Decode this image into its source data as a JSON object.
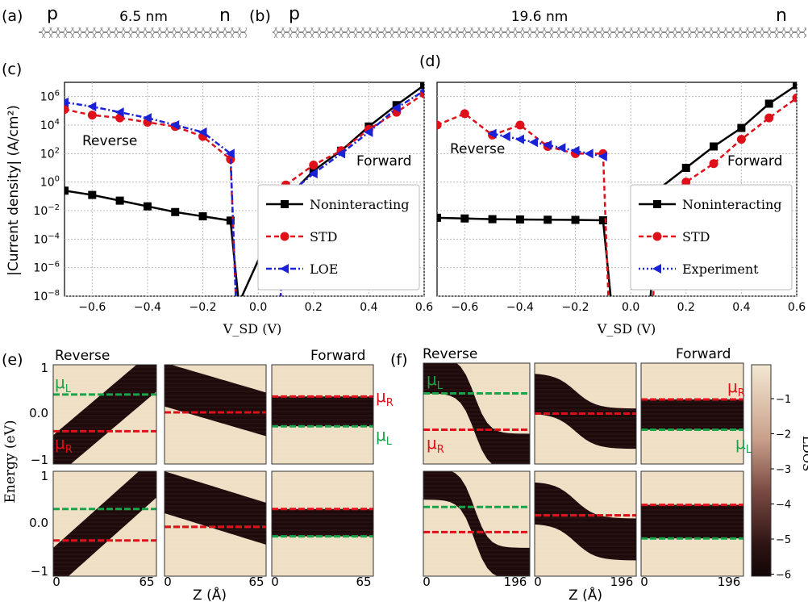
{
  "panel_labels": [
    "(a)",
    "(b)",
    "(c)",
    "(d)",
    "(e)",
    "(f)"
  ],
  "molecule_a": {
    "left_label": "p",
    "length": "6.5 nm",
    "right_label": "n"
  },
  "molecule_b": {
    "left_label": "p",
    "length": "19.6 nm",
    "right_label": "n"
  },
  "panel_c": {
    "ylabel": "|Current density| (A/cm²)",
    "xlabel": "V_SD (V)",
    "annotations": [
      "Reverse",
      "Forward"
    ]
  },
  "panel_d": {
    "xlabel": "V_SD (V)",
    "annotations": [
      "Reverse",
      "Forward"
    ]
  },
  "panel_e": {
    "ylabel": "Energy (eV)",
    "xlabel": "Z (Å)",
    "column_titles": [
      "Reverse",
      "Forward"
    ],
    "mu_left": "μ_L",
    "mu_right": "μ_R",
    "x_ticks": [
      "0",
      "65"
    ],
    "y_ticks": [
      "1",
      "0.0",
      "-1"
    ]
  },
  "panel_f": {
    "xlabel": "Z (Å)",
    "column_titles": [
      "Reverse",
      "Forward"
    ],
    "mu_left": "μ_L",
    "mu_right": "μ_R",
    "x_ticks": [
      "0",
      "196"
    ],
    "colorbar_label": "LDOS",
    "colorbar_ticks": [
      "-1",
      "-2",
      "-3",
      "-4",
      "-5",
      "-6"
    ]
  },
  "colors": {
    "noninteracting": "#000000",
    "std": "#e0101a",
    "loe": "#1a22d8",
    "mu_green": "#1aa34a",
    "mu_red": "#e0101a",
    "dark": "#1e0a0a",
    "light": "#efdfc5"
  },
  "chart_data": [
    {
      "type": "line",
      "panel": "c",
      "log_y": true,
      "xlim": [
        -0.7,
        0.6
      ],
      "ylim": [
        "1e-8",
        "1e7"
      ],
      "xticks": [
        "-0.6",
        "-0.4",
        "-0.2",
        "0.0",
        "0.2",
        "0.4",
        "0.6"
      ],
      "yticks": [
        "10-8",
        "10-6",
        "10-4",
        "10-2",
        "100",
        "102",
        "104",
        "106"
      ],
      "legend": "lower-right",
      "grid": true,
      "series": [
        {
          "name": "Noninteracting",
          "marker": "square",
          "style": "solid",
          "x": [
            -0.7,
            -0.6,
            -0.5,
            -0.4,
            -0.3,
            -0.2,
            -0.1,
            -0.07,
            0.1,
            0.2,
            0.3,
            0.4,
            0.5,
            0.6
          ],
          "log10y": [
            -0.6,
            -0.9,
            -1.3,
            -1.7,
            -2.1,
            -2.4,
            -2.7,
            -8.5,
            -1.2,
            0.8,
            2.2,
            3.9,
            5.4,
            6.8
          ]
        },
        {
          "name": "STD",
          "marker": "circle",
          "style": "dashed",
          "x": [
            -0.7,
            -0.6,
            -0.5,
            -0.4,
            -0.3,
            -0.2,
            -0.1,
            -0.08,
            0.08,
            0.1,
            0.2,
            0.3,
            0.4,
            0.5,
            0.6
          ],
          "log10y": [
            5.1,
            4.7,
            4.5,
            4.2,
            3.9,
            3.2,
            1.6,
            -8.5,
            -8.5,
            -0.2,
            1.2,
            2.2,
            3.7,
            4.9,
            6.2
          ]
        },
        {
          "name": "LOE",
          "marker": "triangle-left",
          "style": "dashdot",
          "x": [
            -0.7,
            -0.6,
            -0.5,
            -0.4,
            -0.3,
            -0.2,
            -0.1,
            -0.08,
            0.08,
            0.1,
            0.2,
            0.3,
            0.4,
            0.5,
            0.6
          ],
          "log10y": [
            5.6,
            5.3,
            4.9,
            4.5,
            4.0,
            3.5,
            2.0,
            -8.5,
            -8.5,
            -1.0,
            0.6,
            2.0,
            3.5,
            5.2,
            6.4
          ]
        }
      ]
    },
    {
      "type": "line",
      "panel": "d",
      "log_y": true,
      "xlim": [
        -0.7,
        0.6
      ],
      "ylim": [
        "1e-8",
        "1e7"
      ],
      "xticks": [
        "-0.6",
        "-0.4",
        "-0.2",
        "0.0",
        "0.2",
        "0.4",
        "0.6"
      ],
      "legend": "lower-right",
      "grid": true,
      "series": [
        {
          "name": "Noninteracting",
          "marker": "square",
          "style": "solid",
          "x": [
            -0.7,
            -0.6,
            -0.5,
            -0.4,
            -0.3,
            -0.2,
            -0.1,
            -0.07,
            0.07,
            0.1,
            0.2,
            0.3,
            0.4,
            0.5,
            0.6
          ],
          "log10y": [
            -2.5,
            -2.55,
            -2.6,
            -2.62,
            -2.64,
            -2.65,
            -2.68,
            -8.5,
            -8.5,
            -0.5,
            1.0,
            2.5,
            3.8,
            5.5,
            6.8
          ]
        },
        {
          "name": "STD",
          "marker": "circle",
          "style": "dashed",
          "x": [
            -0.7,
            -0.6,
            -0.5,
            -0.4,
            -0.3,
            -0.2,
            -0.1,
            -0.08,
            0.08,
            0.1,
            0.2,
            0.3,
            0.4,
            0.5,
            0.6
          ],
          "log10y": [
            4.0,
            4.8,
            3.3,
            4.0,
            2.5,
            2.0,
            2.0,
            -8.5,
            -8.5,
            -1.5,
            0.0,
            1.3,
            3.0,
            4.5,
            5.9
          ]
        },
        {
          "name": "Experiment",
          "marker": "triangle-left",
          "style": "dotted",
          "x": [
            -0.5,
            -0.45,
            -0.4,
            -0.35,
            -0.3,
            -0.25,
            -0.2,
            -0.15,
            -0.1
          ],
          "log10y": [
            3.4,
            3.2,
            3.0,
            2.8,
            2.6,
            2.4,
            2.2,
            2.0,
            1.8
          ]
        }
      ]
    }
  ]
}
